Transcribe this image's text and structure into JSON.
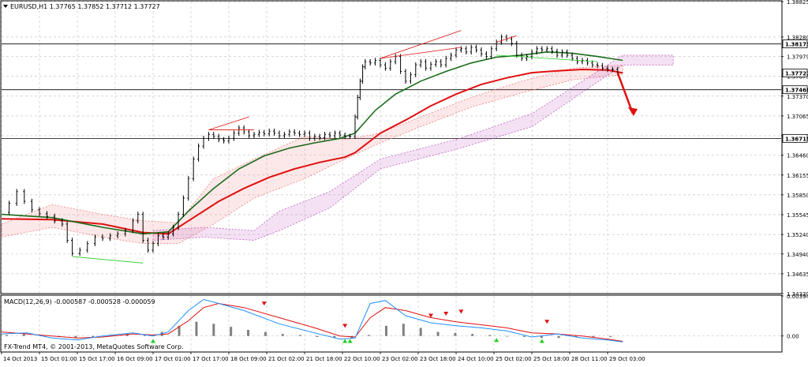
{
  "colors": {
    "background": "#ffffff",
    "grid": "#c8c8c8",
    "frame": "#000000",
    "candle": "#000000",
    "ma_fast": "#1a6b1a",
    "ma_slow": "#e01010",
    "cloud_red": "#f08080",
    "cloud_purple": "#c060c0",
    "level_line": "#000000",
    "arrow": "#e01010",
    "macd_hist": "#808080",
    "macd_signal": "#e01010",
    "macd_line": "#1e90ff",
    "trend_green": "#22cc22"
  },
  "header": {
    "menu_icon": "triangle-down-icon",
    "symbol_line": "EURUSD,H1  1.37765 1.37852 1.37712 1.37727"
  },
  "copyright": "FX-Trend MT4, © 2001-2013, MetaQuotes Software Corp.",
  "chart_data": [
    {
      "type": "candlestick",
      "title": "EURUSD,H1",
      "ohlc": {
        "open": 1.37765,
        "high": 1.37852,
        "low": 1.37712,
        "close": 1.37727
      },
      "ylim": [
        1.3433,
        1.38825
      ],
      "y_ticks": [
        "1.38825",
        "1.38280",
        "1.37979",
        "1.37675",
        "1.37370",
        "1.37065",
        "1.36760",
        "1.36460",
        "1.36155",
        "1.35850",
        "1.35545",
        "1.35240",
        "1.34940",
        "1.34635",
        "1.34330"
      ],
      "level_labels": [
        "1.38173",
        "1.37727",
        "1.37468",
        "1.36719"
      ],
      "levels": [
        1.38173,
        1.37468,
        1.36719
      ],
      "current_price": 1.37727,
      "x_tick_labels": [
        "14 Oct 2013",
        "15 Oct 01:00",
        "15 Oct 17:00",
        "16 Oct 09:00",
        "17 Oct 01:00",
        "17 Oct 17:00",
        "18 Oct 09:00",
        "21 Oct 02:00",
        "21 Oct 18:00",
        "22 Oct 10:00",
        "23 Oct 02:00",
        "23 Oct 18:00",
        "24 Oct 10:00",
        "25 Oct 02:00",
        "25 Oct 18:00",
        "28 Oct 11:00",
        "29 Oct 03:00"
      ],
      "price_path": [
        [
          0,
          1.3558
        ],
        [
          3,
          1.3572
        ],
        [
          6,
          1.359
        ],
        [
          9,
          1.3575
        ],
        [
          12,
          1.3562
        ],
        [
          15,
          1.3556
        ],
        [
          18,
          1.3552
        ],
        [
          21,
          1.3545
        ],
        [
          24,
          1.354
        ],
        [
          26,
          1.3515
        ],
        [
          28,
          1.3495
        ],
        [
          31,
          1.35
        ],
        [
          34,
          1.351
        ],
        [
          37,
          1.352
        ],
        [
          40,
          1.3518
        ],
        [
          43,
          1.3522
        ],
        [
          46,
          1.3525
        ],
        [
          49,
          1.353
        ],
        [
          52,
          1.3545
        ],
        [
          54,
          1.3555
        ],
        [
          56,
          1.3515
        ],
        [
          58,
          1.35
        ],
        [
          60,
          1.351
        ],
        [
          62,
          1.3522
        ],
        [
          64,
          1.352
        ],
        [
          66,
          1.3525
        ],
        [
          68,
          1.3535
        ],
        [
          70,
          1.3555
        ],
        [
          72,
          1.358
        ],
        [
          74,
          1.361
        ],
        [
          76,
          1.364
        ],
        [
          78,
          1.366
        ],
        [
          80,
          1.3672
        ],
        [
          82,
          1.3678
        ],
        [
          84,
          1.3675
        ],
        [
          86,
          1.367
        ],
        [
          88,
          1.3668
        ],
        [
          90,
          1.3672
        ],
        [
          92,
          1.368
        ],
        [
          94,
          1.3688
        ],
        [
          96,
          1.3682
        ],
        [
          98,
          1.3676
        ],
        [
          100,
          1.3678
        ],
        [
          102,
          1.3681
        ],
        [
          104,
          1.3679
        ],
        [
          106,
          1.3683
        ],
        [
          108,
          1.368
        ],
        [
          110,
          1.3676
        ],
        [
          112,
          1.3678
        ],
        [
          114,
          1.3682
        ],
        [
          116,
          1.368
        ],
        [
          118,
          1.3678
        ],
        [
          120,
          1.368
        ],
        [
          122,
          1.3672
        ],
        [
          124,
          1.3675
        ],
        [
          126,
          1.3673
        ],
        [
          128,
          1.3678
        ],
        [
          130,
          1.3676
        ],
        [
          132,
          1.368
        ],
        [
          134,
          1.3677
        ],
        [
          136,
          1.3675
        ],
        [
          138,
          1.3675
        ],
        [
          140,
          1.3705
        ],
        [
          141,
          1.3735
        ],
        [
          142,
          1.376
        ],
        [
          143,
          1.3782
        ],
        [
          144,
          1.379
        ],
        [
          146,
          1.3788
        ],
        [
          148,
          1.3792
        ],
        [
          150,
          1.3785
        ],
        [
          152,
          1.378
        ],
        [
          154,
          1.379
        ],
        [
          156,
          1.3798
        ],
        [
          158,
          1.3775
        ],
        [
          160,
          1.376
        ],
        [
          162,
          1.377
        ],
        [
          164,
          1.3785
        ],
        [
          166,
          1.379
        ],
        [
          168,
          1.378
        ],
        [
          170,
          1.3786
        ],
        [
          172,
          1.379
        ],
        [
          174,
          1.3785
        ],
        [
          176,
          1.3795
        ],
        [
          178,
          1.38
        ],
        [
          180,
          1.3808
        ],
        [
          182,
          1.381
        ],
        [
          184,
          1.3805
        ],
        [
          186,
          1.3812
        ],
        [
          188,
          1.3808
        ],
        [
          190,
          1.3802
        ],
        [
          192,
          1.3798
        ],
        [
          194,
          1.381
        ],
        [
          196,
          1.382
        ],
        [
          198,
          1.3828
        ],
        [
          200,
          1.3825
        ],
        [
          202,
          1.3818
        ],
        [
          204,
          1.38
        ],
        [
          206,
          1.3795
        ],
        [
          208,
          1.3798
        ],
        [
          210,
          1.3805
        ],
        [
          212,
          1.381
        ],
        [
          214,
          1.3808
        ],
        [
          216,
          1.381
        ],
        [
          218,
          1.3806
        ],
        [
          220,
          1.38
        ],
        [
          222,
          1.3805
        ],
        [
          224,
          1.38
        ],
        [
          226,
          1.3795
        ],
        [
          228,
          1.379
        ],
        [
          230,
          1.3792
        ],
        [
          232,
          1.3788
        ],
        [
          234,
          1.3785
        ],
        [
          236,
          1.3784
        ],
        [
          238,
          1.378
        ],
        [
          240,
          1.3778
        ],
        [
          242,
          1.3778
        ],
        [
          244,
          1.37727
        ]
      ],
      "ma_fast_path": [
        [
          0,
          1.3555
        ],
        [
          20,
          1.355
        ],
        [
          40,
          1.3535
        ],
        [
          56,
          1.3525
        ],
        [
          66,
          1.3528
        ],
        [
          74,
          1.356
        ],
        [
          84,
          1.3595
        ],
        [
          94,
          1.3625
        ],
        [
          104,
          1.3645
        ],
        [
          114,
          1.3657
        ],
        [
          124,
          1.3665
        ],
        [
          134,
          1.3672
        ],
        [
          140,
          1.368
        ],
        [
          148,
          1.3715
        ],
        [
          156,
          1.374
        ],
        [
          166,
          1.376
        ],
        [
          176,
          1.3775
        ],
        [
          186,
          1.3788
        ],
        [
          196,
          1.3797
        ],
        [
          206,
          1.38
        ],
        [
          216,
          1.3805
        ],
        [
          226,
          1.3803
        ],
        [
          236,
          1.3798
        ],
        [
          246,
          1.3792
        ]
      ],
      "ma_slow_path": [
        [
          0,
          1.3548
        ],
        [
          20,
          1.3547
        ],
        [
          40,
          1.354
        ],
        [
          56,
          1.3527
        ],
        [
          66,
          1.3525
        ],
        [
          76,
          1.355
        ],
        [
          86,
          1.3575
        ],
        [
          96,
          1.3595
        ],
        [
          106,
          1.3612
        ],
        [
          116,
          1.3625
        ],
        [
          126,
          1.3635
        ],
        [
          136,
          1.3643
        ],
        [
          140,
          1.365
        ],
        [
          150,
          1.368
        ],
        [
          160,
          1.37
        ],
        [
          170,
          1.3722
        ],
        [
          180,
          1.374
        ],
        [
          190,
          1.3755
        ],
        [
          200,
          1.3765
        ],
        [
          210,
          1.3773
        ],
        [
          220,
          1.3776
        ],
        [
          230,
          1.3778
        ],
        [
          240,
          1.3777
        ],
        [
          246,
          1.37727
        ]
      ],
      "cloud_red_upper": [
        [
          0,
          1.354
        ],
        [
          20,
          1.357
        ],
        [
          40,
          1.3555
        ],
        [
          56,
          1.3545
        ],
        [
          70,
          1.3542
        ],
        [
          84,
          1.361
        ],
        [
          100,
          1.364
        ],
        [
          120,
          1.3675
        ],
        [
          136,
          1.367
        ],
        [
          150,
          1.368
        ],
        [
          166,
          1.3705
        ],
        [
          186,
          1.3735
        ],
        [
          206,
          1.376
        ],
        [
          226,
          1.378
        ],
        [
          246,
          1.3785
        ]
      ],
      "cloud_red_lower": [
        [
          0,
          1.352
        ],
        [
          20,
          1.3535
        ],
        [
          40,
          1.352
        ],
        [
          56,
          1.351
        ],
        [
          70,
          1.351
        ],
        [
          84,
          1.354
        ],
        [
          100,
          1.358
        ],
        [
          120,
          1.361
        ],
        [
          136,
          1.364
        ],
        [
          150,
          1.3665
        ],
        [
          166,
          1.369
        ],
        [
          186,
          1.372
        ],
        [
          206,
          1.3742
        ],
        [
          226,
          1.3762
        ],
        [
          246,
          1.377
        ]
      ],
      "cloud_purple_upper": [
        [
          60,
          1.353
        ],
        [
          80,
          1.3535
        ],
        [
          100,
          1.353
        ],
        [
          110,
          1.356
        ],
        [
          130,
          1.359
        ],
        [
          150,
          1.364
        ],
        [
          180,
          1.367
        ],
        [
          210,
          1.371
        ],
        [
          246,
          1.38
        ],
        [
          266,
          1.38
        ]
      ],
      "cloud_purple_lower": [
        [
          60,
          1.3515
        ],
        [
          80,
          1.352
        ],
        [
          100,
          1.3515
        ],
        [
          110,
          1.353
        ],
        [
          130,
          1.3565
        ],
        [
          150,
          1.3625
        ],
        [
          180,
          1.3655
        ],
        [
          210,
          1.369
        ],
        [
          246,
          1.3785
        ],
        [
          266,
          1.3785
        ]
      ],
      "red_trend_lines": [
        [
          [
            82,
            1.3685
          ],
          [
            98,
            1.3705
          ]
        ],
        [
          [
            82,
            1.3685
          ],
          [
            100,
            1.3685
          ]
        ],
        [
          [
            150,
            1.3795
          ],
          [
            182,
            1.3838
          ]
        ],
        [
          [
            150,
            1.3795
          ],
          [
            182,
            1.3812
          ]
        ],
        [
          [
            196,
            1.382
          ],
          [
            204,
            1.383
          ]
        ]
      ],
      "green_trend_lines": [
        [
          [
            28,
            1.349
          ],
          [
            56,
            1.348
          ]
        ],
        [
          [
            196,
            1.38
          ],
          [
            236,
            1.379
          ]
        ]
      ],
      "forecast_arrow": [
        [
          244,
          1.37727
        ],
        [
          250,
          1.371
        ]
      ]
    },
    {
      "type": "macd",
      "label": "MACD(12,26,9) -0.000587 -0.000528 -0.000059",
      "params": [
        12,
        26,
        9
      ],
      "values": {
        "macd": -0.000587,
        "signal": -0.000528,
        "histogram": -5.9e-05
      },
      "ylim": [
        -0.0015,
        0.00394
      ],
      "y_tick_labels": [
        "0.00394",
        "0.00"
      ],
      "macd_line": [
        [
          0,
          0.0002
        ],
        [
          10,
          0.0003
        ],
        [
          20,
          -0.0002
        ],
        [
          30,
          -0.0004
        ],
        [
          40,
          0.0
        ],
        [
          52,
          0.0003
        ],
        [
          60,
          0.0
        ],
        [
          66,
          0.0004
        ],
        [
          74,
          0.0025
        ],
        [
          80,
          0.0036
        ],
        [
          86,
          0.0032
        ],
        [
          96,
          0.0025
        ],
        [
          110,
          0.0012
        ],
        [
          124,
          0.0003
        ],
        [
          134,
          -0.0003
        ],
        [
          140,
          -0.0002
        ],
        [
          146,
          0.0032
        ],
        [
          152,
          0.0035
        ],
        [
          160,
          0.002
        ],
        [
          170,
          0.0013
        ],
        [
          180,
          0.001
        ],
        [
          190,
          0.0008
        ],
        [
          200,
          0.0005
        ],
        [
          210,
          -0.0001
        ],
        [
          220,
          0.0002
        ],
        [
          230,
          -0.0002
        ],
        [
          240,
          -0.0004
        ],
        [
          246,
          -0.000587
        ]
      ],
      "signal_line": [
        [
          0,
          0.0004
        ],
        [
          10,
          0.0002
        ],
        [
          20,
          0.0
        ],
        [
          30,
          -0.0002
        ],
        [
          40,
          -0.0001
        ],
        [
          52,
          0.0002
        ],
        [
          60,
          0.0001
        ],
        [
          66,
          0.0002
        ],
        [
          74,
          0.0015
        ],
        [
          80,
          0.0028
        ],
        [
          86,
          0.0032
        ],
        [
          96,
          0.0028
        ],
        [
          110,
          0.0018
        ],
        [
          124,
          0.0008
        ],
        [
          134,
          0.0
        ],
        [
          140,
          -0.0001
        ],
        [
          146,
          0.0018
        ],
        [
          152,
          0.0028
        ],
        [
          160,
          0.0025
        ],
        [
          170,
          0.0018
        ],
        [
          180,
          0.0014
        ],
        [
          190,
          0.0011
        ],
        [
          200,
          0.0008
        ],
        [
          210,
          0.0003
        ],
        [
          220,
          0.0002
        ],
        [
          230,
          0.0
        ],
        [
          240,
          -0.0003
        ],
        [
          246,
          -0.000528
        ]
      ],
      "histogram": [
        0.0001,
        0.0002,
        0.0001,
        -0.0001,
        -0.0002,
        -0.0001,
        0.0001,
        0.0002,
        0.0001,
        0.0004,
        0.001,
        0.0014,
        0.0012,
        0.0009,
        0.0006,
        0.0004,
        0.0002,
        0.0001,
        -0.0001,
        -0.0002,
        -0.0002,
        0.0001,
        0.001,
        0.0012,
        0.0008,
        0.0004,
        0.0003,
        0.0002,
        0.0001,
        0.0,
        -0.0001,
        -0.0002,
        -0.0002,
        -0.0001,
        -0.0001,
        -0.0001
      ],
      "red_markers": [
        [
          104,
          0.003
        ],
        [
          136,
          0.0008
        ],
        [
          170,
          0.0018
        ],
        [
          176,
          0.002
        ],
        [
          182,
          0.0022
        ],
        [
          216,
          0.0012
        ]
      ],
      "green_markers": [
        [
          60,
          -0.0003
        ],
        [
          136,
          -0.0003
        ],
        [
          138,
          -0.0003
        ],
        [
          196,
          -0.0002
        ],
        [
          214,
          -0.0003
        ]
      ]
    }
  ]
}
